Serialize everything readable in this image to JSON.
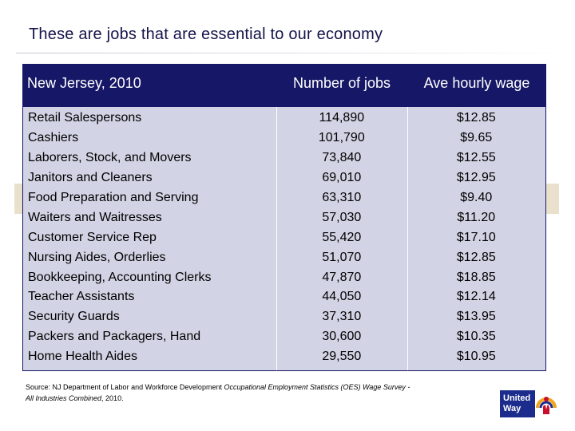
{
  "title": "These are jobs that are essential to our economy",
  "table": {
    "headers": [
      "New Jersey, 2010",
      "Number of jobs",
      "Ave hourly wage"
    ],
    "rows": [
      [
        "Retail Salespersons",
        "114,890",
        "$12.85"
      ],
      [
        "Cashiers",
        "101,790",
        "$9.65"
      ],
      [
        "Laborers, Stock, and Movers",
        "73,840",
        "$12.55"
      ],
      [
        "Janitors and Cleaners",
        "69,010",
        "$12.95"
      ],
      [
        "Food Preparation and Serving",
        "63,310",
        "$9.40"
      ],
      [
        "Waiters and Waitresses",
        "57,030",
        "$11.20"
      ],
      [
        "Customer Service Rep",
        "55,420",
        "$17.10"
      ],
      [
        "Nursing Aides, Orderlies",
        "51,070",
        "$12.85"
      ],
      [
        "Bookkeeping, Accounting Clerks",
        "47,870",
        "$18.85"
      ],
      [
        "Teacher Assistants",
        "44,050",
        "$12.14"
      ],
      [
        "Security Guards",
        "37,310",
        "$13.95"
      ],
      [
        "Packers and Packagers, Hand",
        "30,600",
        "$10.35"
      ],
      [
        "Home Health Aides",
        "29,550",
        "$10.95"
      ]
    ]
  },
  "source": {
    "prefix": "Source: NJ Department of Labor and Workforce Development ",
    "survey": "Occupational Employment Statistics (OES) Wage Survey -",
    "industries": "All Industries Combined",
    "year": ", 2010."
  },
  "logo": {
    "line1": "United",
    "line2": "Way",
    "colors": {
      "box": "#1b2c8c",
      "rainbow": "#f2a51a",
      "hand": "#c8102e"
    }
  }
}
